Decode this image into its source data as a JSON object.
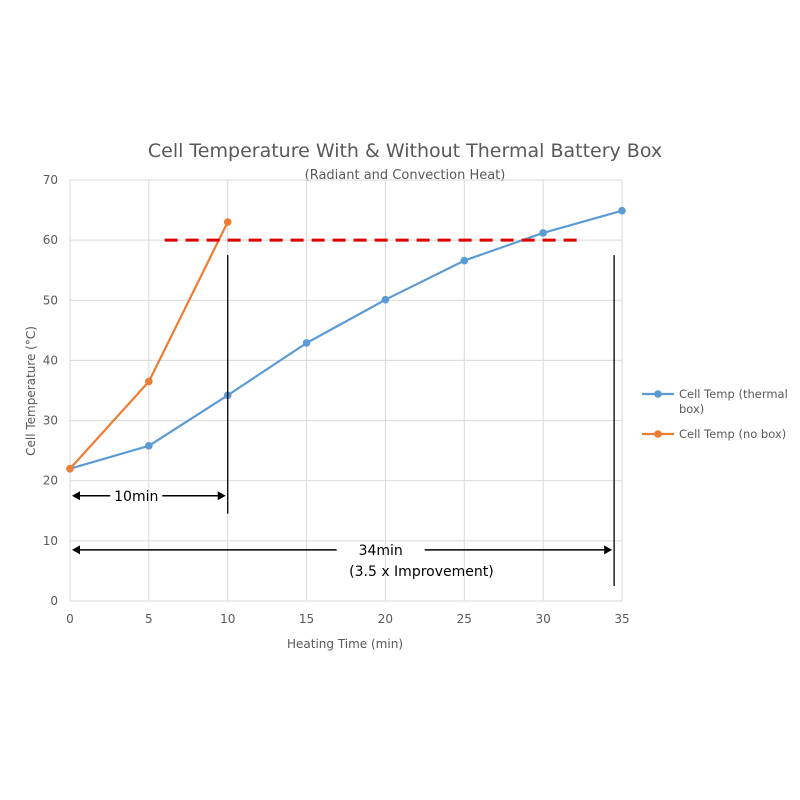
{
  "chart_data": {
    "type": "line",
    "title": "Cell Temperature With & Without Thermal Battery Box",
    "subtitle": "(Radiant and Convection Heat)",
    "xlabel": "Heating Time (min)",
    "ylabel": "Cell Temperature (°C)",
    "xlim": [
      0,
      35
    ],
    "ylim": [
      0,
      70
    ],
    "x_ticks": [
      "0",
      "5",
      "10",
      "15",
      "20",
      "25",
      "30",
      "35"
    ],
    "y_ticks": [
      "0",
      "10",
      "20",
      "30",
      "40",
      "50",
      "60",
      "70"
    ],
    "grid": "vertical and horizontal",
    "legend_position": "right",
    "series": [
      {
        "name": "Cell Temp (thermal box)",
        "legend_lines": [
          "Cell Temp (thermal",
          "box)"
        ],
        "color": "#5b9bd5",
        "x": [
          0,
          5,
          10,
          15,
          20,
          25,
          30,
          35
        ],
        "y": [
          22,
          25.8,
          34.2,
          42.9,
          50.1,
          56.6,
          61.2,
          64.9
        ]
      },
      {
        "name": "Cell Temp (no box)",
        "legend_lines": [
          "Cell Temp (no box)"
        ],
        "color": "#ed7d31",
        "x": [
          0,
          5,
          10
        ],
        "y": [
          22,
          36.5,
          63
        ]
      }
    ],
    "annotations": {
      "threshold": {
        "y": 60,
        "x_from": 6,
        "x_to": 32.5,
        "color": "#e00000"
      },
      "vline_short": {
        "x": 10,
        "y_from": 57.5,
        "y_to": 14.5
      },
      "vline_long": {
        "x": 34.5,
        "y_from": 57.5,
        "y_to": 2.5
      },
      "arrow_short": {
        "y": 17.5,
        "x_from": 0,
        "x_to": 10,
        "label": "10min",
        "label_x": 4.2
      },
      "arrow_long": {
        "y": 8.5,
        "x_from": 0,
        "x_to": 34.5,
        "label": "34min",
        "label_x": 19.7,
        "sublabel": "(3.5 x Improvement)",
        "sublabel_x": 17.7
      }
    }
  }
}
